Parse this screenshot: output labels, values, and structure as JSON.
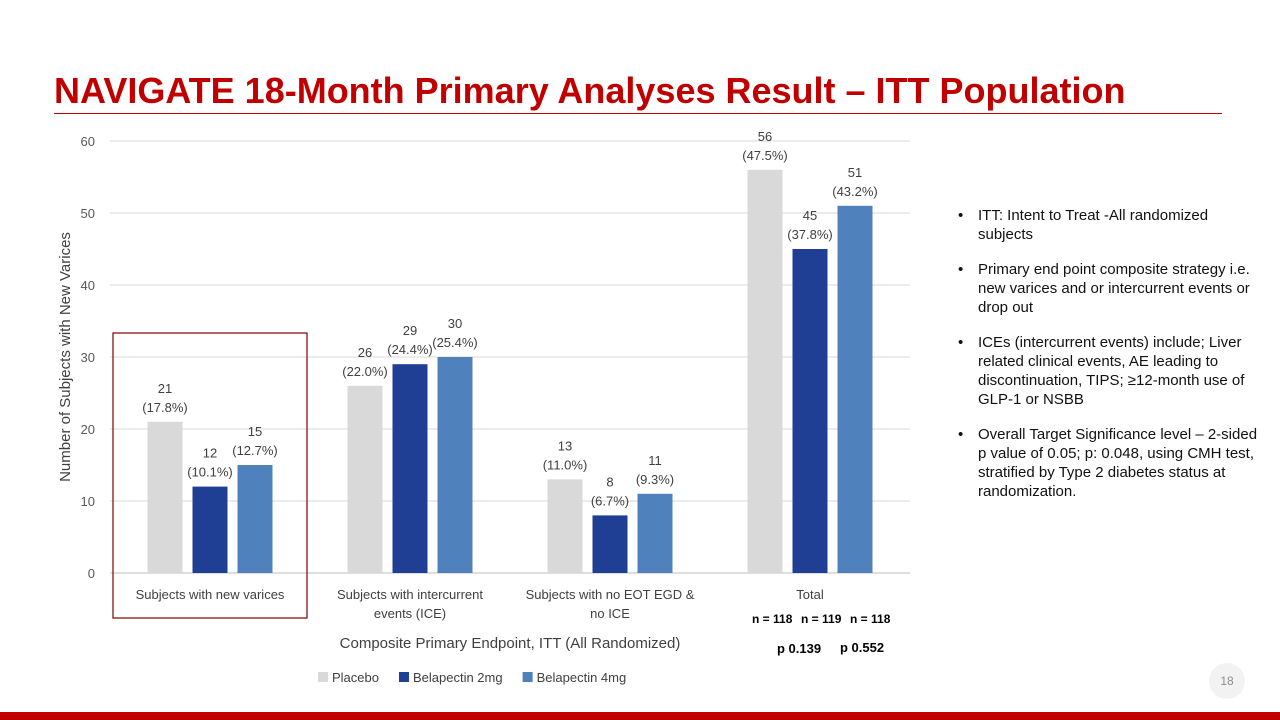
{
  "slide": {
    "title": "NAVIGATE 18-Month Primary Analyses Result – ITT Population",
    "page_number": "18"
  },
  "chart_data": {
    "type": "bar",
    "title": "",
    "xlabel": "Composite Primary Endpoint, ITT (All Randomized)",
    "ylabel": "Number of Subjects with New Varices",
    "ylim": [
      0,
      60
    ],
    "yticks": [
      0,
      10,
      20,
      30,
      40,
      50,
      60
    ],
    "grid": true,
    "legend_position": "bottom",
    "categories": [
      [
        "Subjects with new varices"
      ],
      [
        "Subjects with intercurrent",
        "events (ICE)"
      ],
      [
        "Subjects with no EOT EGD &",
        "no ICE"
      ],
      [
        "Total"
      ]
    ],
    "series": [
      {
        "name": "Placebo",
        "color": "#d9d9d9",
        "values": [
          21,
          26,
          13,
          56
        ],
        "labels": [
          "(17.8%)",
          "(22.0%)",
          "(11.0%)",
          "(47.5%)"
        ]
      },
      {
        "name": "Belapectin 2mg",
        "color": "#1f3f94",
        "values": [
          12,
          29,
          8,
          45
        ],
        "labels": [
          "(10.1%)",
          "(24.4%)",
          "(6.7%)",
          "(37.8%)"
        ]
      },
      {
        "name": "Belapectin 4mg",
        "color": "#4f81bd",
        "values": [
          15,
          30,
          11,
          51
        ],
        "labels": [
          "(12.7%)",
          "(25.4%)",
          "(9.3%)",
          "(43.2%)"
        ]
      }
    ],
    "highlighted_category": "Subjects with new varices"
  },
  "total_stats": {
    "n_placebo": "n = 118",
    "n_2mg": "n = 119",
    "n_4mg": "n = 118",
    "p_2mg": "p 0.139",
    "p_4mg": "p 0.552"
  },
  "bullets": [
    "ITT: Intent to Treat -All randomized subjects",
    "Primary end point composite strategy i.e. new varices and or intercurrent events or drop out",
    "ICEs (intercurrent events) include; Liver related clinical events, AE leading to discontinuation, TIPS;  ≥12-month use of GLP-1 or NSBB",
    "Overall Target Significance level – 2-sided p value of 0.05; p: 0.048, using CMH test, stratified by Type 2 diabetes status at randomization."
  ]
}
